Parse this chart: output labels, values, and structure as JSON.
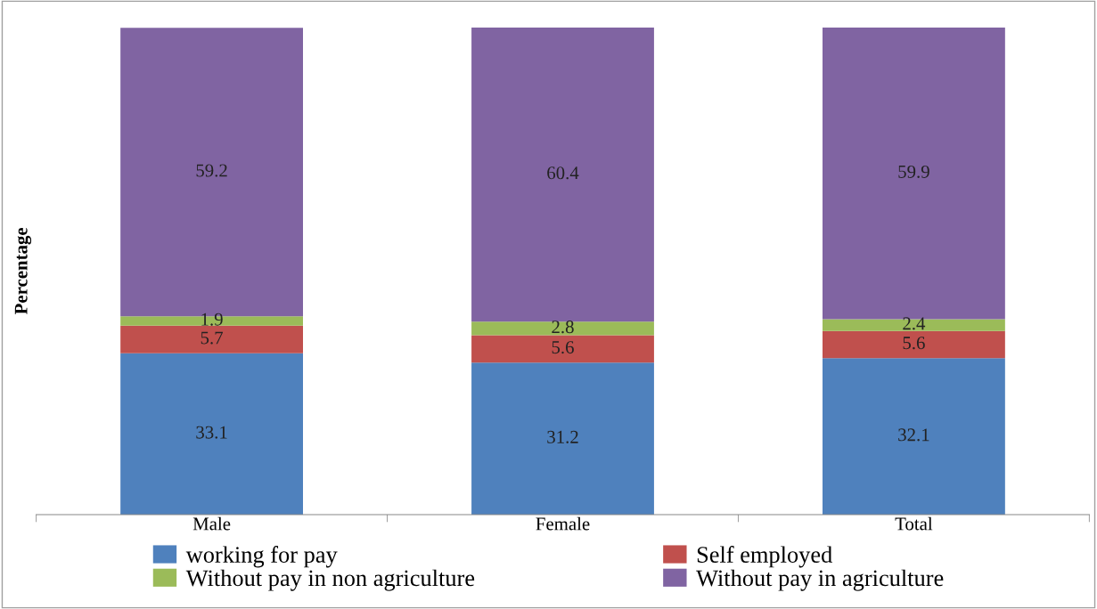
{
  "chart_data": {
    "type": "bar",
    "stacked": true,
    "ylabel": "Percentage",
    "categories": [
      "Male",
      "Female",
      "Total"
    ],
    "series": [
      {
        "name": "working for pay",
        "color": "#4f81bd",
        "values": [
          33.1,
          31.2,
          32.1
        ]
      },
      {
        "name": "Self employed",
        "color": "#c0504d",
        "values": [
          5.7,
          5.6,
          5.6
        ]
      },
      {
        "name": "Without pay in non agriculture",
        "color": "#9bbb59",
        "values": [
          1.9,
          2.8,
          2.4
        ]
      },
      {
        "name": "Without pay in agriculture",
        "color": "#8064a2",
        "values": [
          59.2,
          60.4,
          59.9
        ]
      }
    ],
    "data_labels": true,
    "legend": "bottom",
    "grid": false
  }
}
